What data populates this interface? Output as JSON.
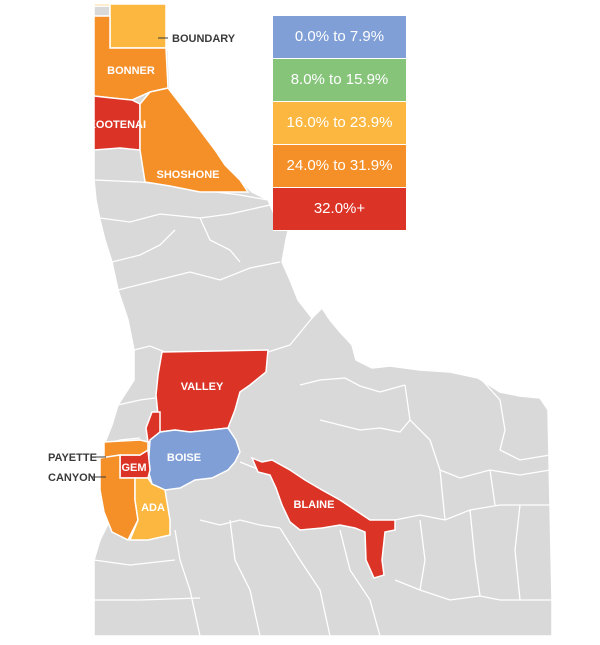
{
  "colors": {
    "base": "#d9d9d9",
    "border": "#ffffff",
    "blue": "#7f9fd6",
    "green": "#86c47a",
    "yellow": "#fbb73f",
    "orange": "#f58f27",
    "red": "#db3326",
    "callout_text": "#3a3a3a"
  },
  "legend": [
    {
      "label": "0.0% to  7.9%",
      "color": "#7f9fd6"
    },
    {
      "label": "8.0% to 15.9%",
      "color": "#86c47a"
    },
    {
      "label": "16.0% to 23.9%",
      "color": "#fbb73f"
    },
    {
      "label": "24.0% to 31.9%",
      "color": "#f58f27"
    },
    {
      "label": "32.0%+",
      "color": "#db3326"
    }
  ],
  "counties": {
    "boundary": "BOUNDARY",
    "bonner": "BONNER",
    "kootenai": "KOOTENAI",
    "shoshone": "SHOSHONE",
    "valley": "VALLEY",
    "boise": "BOISE",
    "gem": "GEM",
    "payette": "PAYETTE",
    "canyon": "CANYON",
    "ada": "ADA",
    "blaine": "BLAINE"
  }
}
